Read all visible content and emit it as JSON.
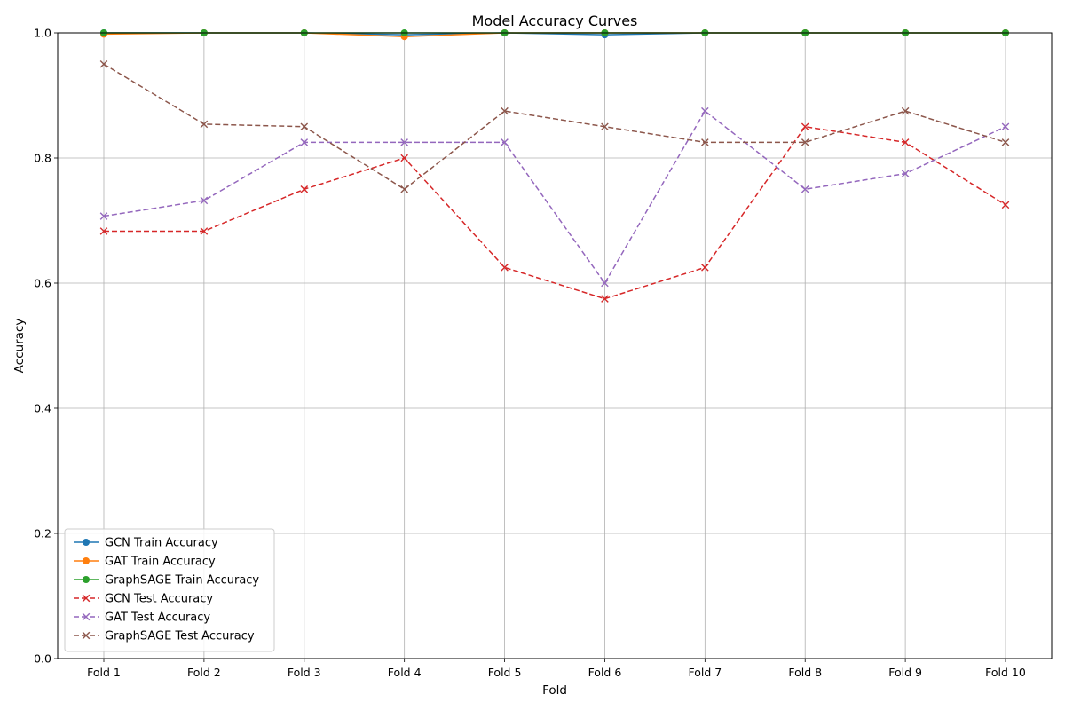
{
  "chart_data": {
    "type": "line",
    "title": "Model Accuracy Curves",
    "xlabel": "Fold",
    "ylabel": "Accuracy",
    "categories": [
      "Fold 1",
      "Fold 2",
      "Fold 3",
      "Fold 4",
      "Fold 5",
      "Fold 6",
      "Fold 7",
      "Fold 8",
      "Fold 9",
      "Fold 10"
    ],
    "ylim": [
      0.0,
      1.0
    ],
    "yticks": [
      "0.0",
      "0.2",
      "0.4",
      "0.6",
      "0.8",
      "1.0"
    ],
    "grid": true,
    "legend_position": "lower-left",
    "series": [
      {
        "name": "GCN Train Accuracy",
        "color": "#1f77b4",
        "linestyle": "solid",
        "marker": "circle",
        "values": [
          1.0,
          1.0,
          1.0,
          0.997,
          1.0,
          0.997,
          1.0,
          1.0,
          1.0,
          1.0
        ]
      },
      {
        "name": "GAT Train Accuracy",
        "color": "#ff7f0e",
        "linestyle": "solid",
        "marker": "circle",
        "values": [
          0.998,
          1.0,
          1.0,
          0.994,
          1.0,
          1.0,
          1.0,
          1.0,
          1.0,
          1.0
        ]
      },
      {
        "name": "GraphSAGE Train Accuracy",
        "color": "#2ca02c",
        "linestyle": "solid",
        "marker": "circle",
        "values": [
          1.0,
          1.0,
          1.0,
          1.0,
          1.0,
          1.0,
          1.0,
          1.0,
          1.0,
          1.0
        ]
      },
      {
        "name": "GCN Test Accuracy",
        "color": "#d62728",
        "linestyle": "dashed",
        "marker": "x",
        "values": [
          0.683,
          0.683,
          0.75,
          0.8,
          0.625,
          0.575,
          0.625,
          0.85,
          0.825,
          0.725
        ]
      },
      {
        "name": "GAT Test Accuracy",
        "color": "#9467bd",
        "linestyle": "dashed",
        "marker": "x",
        "values": [
          0.707,
          0.732,
          0.825,
          0.825,
          0.825,
          0.6,
          0.875,
          0.75,
          0.775,
          0.85
        ]
      },
      {
        "name": "GraphSAGE Test Accuracy",
        "color": "#8c564b",
        "linestyle": "dashed",
        "marker": "x",
        "values": [
          0.95,
          0.854,
          0.85,
          0.75,
          0.875,
          0.85,
          0.825,
          0.825,
          0.875,
          0.825
        ]
      }
    ]
  }
}
